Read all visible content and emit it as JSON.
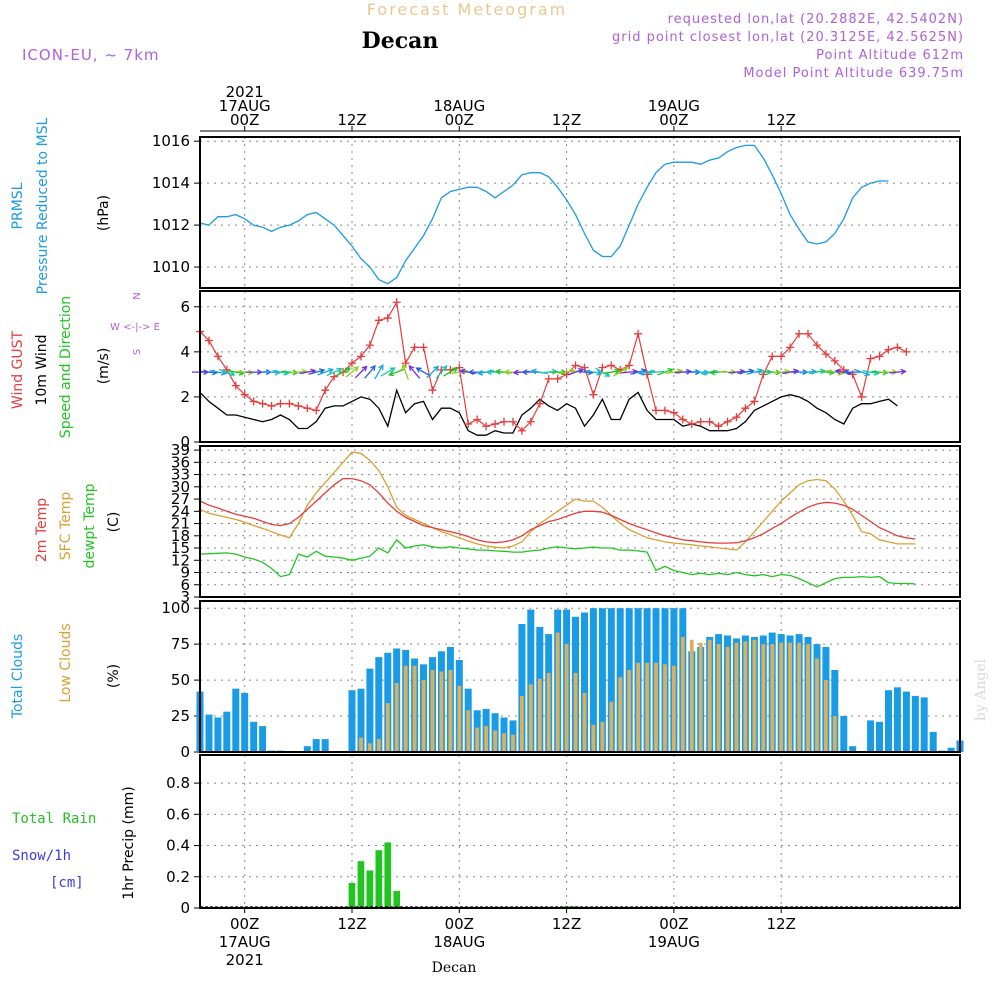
{
  "header": {
    "title": "Forecast Meteogram",
    "location": "Decan",
    "model": "ICON-EU, ~ 7km",
    "requested": "requested lon,lat (20.2882E, 42.5402N)",
    "gridpoint": "grid point closest lon,lat (20.3125E, 42.5625N)",
    "point_alt": "Point Altitude 612m",
    "model_alt": "Model Point Altitude 639.75m",
    "watermark": "by Angel",
    "footer_location": "Decan"
  },
  "time_axis": {
    "top_labels": [
      {
        "h": 0,
        "lines": [
          "2021",
          "17AUG",
          "00Z"
        ]
      },
      {
        "h": 12,
        "lines": [
          "12Z"
        ]
      },
      {
        "h": 24,
        "lines": [
          "18AUG",
          "00Z"
        ]
      },
      {
        "h": 36,
        "lines": [
          "12Z"
        ]
      },
      {
        "h": 48,
        "lines": [
          "19AUG",
          "00Z"
        ]
      },
      {
        "h": 60,
        "lines": [
          "12Z"
        ]
      }
    ],
    "bottom_labels": [
      {
        "h": 0,
        "lines": [
          "00Z",
          "17AUG",
          "2021"
        ]
      },
      {
        "h": 12,
        "lines": [
          "12Z"
        ]
      },
      {
        "h": 24,
        "lines": [
          "00Z",
          "18AUG"
        ]
      },
      {
        "h": 36,
        "lines": [
          "12Z"
        ]
      },
      {
        "h": 48,
        "lines": [
          "00Z",
          "19AUG"
        ]
      },
      {
        "h": 60,
        "lines": [
          "12Z"
        ]
      }
    ]
  },
  "colors": {
    "pressure": "#1a9be6",
    "gust": "#e83c3c",
    "wind": "#000000",
    "temp": "#e83c3c",
    "sfc": "#d9a030",
    "dewpt": "#22c422",
    "total_clouds": "#1a9be6",
    "low_clouds": "#d9b060",
    "rain": "#22c422",
    "snow": "#3a3ae8",
    "meta": "#b060d8",
    "title": "#e8c890"
  },
  "chart_data": [
    {
      "type": "line",
      "panel": "pressure",
      "title": "PRMSL Pressure Reduced to MSL",
      "ylabel_lines": [
        "PRMSL",
        "Pressure Reduced to MSL"
      ],
      "unit": "(hPa)",
      "ylim": [
        1009,
        1016.2
      ],
      "yticks": [
        1010,
        1012,
        1014,
        1016
      ],
      "x_start": -5,
      "x_step": 1,
      "values": [
        1012.1,
        1012.0,
        1012.4,
        1012.4,
        1012.5,
        1012.3,
        1012.0,
        1011.9,
        1011.7,
        1011.9,
        1012.0,
        1012.2,
        1012.5,
        1012.6,
        1012.3,
        1012.0,
        1011.5,
        1011.0,
        1010.4,
        1010.0,
        1009.4,
        1009.2,
        1009.5,
        1010.3,
        1010.9,
        1011.5,
        1012.3,
        1013.3,
        1013.6,
        1013.7,
        1013.8,
        1013.8,
        1013.6,
        1013.3,
        1013.6,
        1013.9,
        1014.4,
        1014.5,
        1014.5,
        1014.3,
        1013.8,
        1013.2,
        1012.5,
        1011.6,
        1010.8,
        1010.5,
        1010.5,
        1011.0,
        1012.0,
        1013.0,
        1013.8,
        1014.5,
        1014.9,
        1015.0,
        1015.0,
        1015.0,
        1014.9,
        1015.1,
        1015.2,
        1015.5,
        1015.7,
        1015.8,
        1015.8,
        1015.2,
        1014.4,
        1013.5,
        1012.5,
        1011.8,
        1011.2,
        1011.1,
        1011.2,
        1011.6,
        1012.3,
        1013.3,
        1013.8,
        1014.0,
        1014.1,
        1014.1
      ]
    },
    {
      "type": "line",
      "panel": "wind",
      "title": "Wind GUST / 10m Wind Speed and Direction",
      "ylabel_lines": [
        "Wind GUST",
        "10m Wind",
        "Speed and Direction"
      ],
      "unit": "(m/s)",
      "compass": [
        "N",
        "W <-|-> E",
        "S"
      ],
      "ylim": [
        0,
        6.7
      ],
      "yticks": [
        0,
        2,
        4,
        6
      ],
      "x_start": -5,
      "x_step": 1,
      "gust": [
        4.9,
        4.5,
        3.8,
        3.2,
        2.5,
        2.1,
        1.8,
        1.7,
        1.6,
        1.7,
        1.7,
        1.6,
        1.5,
        1.4,
        2.3,
        2.9,
        3.1,
        3.5,
        3.8,
        4.3,
        5.4,
        5.5,
        6.2,
        3.5,
        4.2,
        4.2,
        2.3,
        3.2,
        3.2,
        3.3,
        0.8,
        1.0,
        0.7,
        0.8,
        0.9,
        0.9,
        0.5,
        0.9,
        1.7,
        2.8,
        2.8,
        3.0,
        3.4,
        3.3,
        2.1,
        3.3,
        3.4,
        3.2,
        3.4,
        4.8,
        3.0,
        1.4,
        1.4,
        1.3,
        1.0,
        0.8,
        0.9,
        0.9,
        0.7,
        0.9,
        1.1,
        1.5,
        1.8,
        3.0,
        3.8,
        3.8,
        4.2,
        4.8,
        4.8,
        4.3,
        3.9,
        3.6,
        3.2,
        3.0,
        2.0,
        3.7,
        3.8,
        4.1,
        4.2,
        4.0
      ],
      "wind": [
        2.2,
        1.8,
        1.5,
        1.2,
        1.2,
        1.1,
        1.0,
        0.9,
        1.0,
        1.2,
        1.0,
        0.6,
        0.6,
        0.9,
        1.5,
        1.6,
        1.6,
        1.8,
        2.0,
        1.9,
        1.5,
        0.7,
        2.3,
        1.3,
        1.7,
        1.8,
        1.0,
        1.5,
        1.5,
        1.3,
        0.5,
        0.3,
        0.3,
        0.5,
        0.4,
        0.4,
        1.2,
        1.5,
        1.9,
        1.6,
        1.4,
        1.7,
        1.5,
        0.7,
        1.2,
        1.9,
        1.0,
        1.0,
        1.9,
        2.2,
        1.4,
        1.0,
        1.0,
        1.0,
        0.7,
        0.8,
        0.7,
        0.5,
        0.5,
        0.5,
        0.6,
        0.9,
        1.4,
        1.6,
        1.8,
        2.0,
        2.1,
        2.0,
        1.8,
        1.5,
        1.3,
        1.0,
        0.8,
        1.5,
        1.7,
        1.7,
        1.8,
        1.9,
        1.6
      ],
      "direction_deg": [
        90,
        95,
        100,
        110,
        100,
        95,
        90,
        90,
        95,
        100,
        95,
        85,
        80,
        75,
        70,
        65,
        60,
        50,
        45,
        40,
        30,
        60,
        250,
        340,
        320,
        300,
        45,
        40,
        60,
        80,
        280,
        270,
        260,
        270,
        275,
        270,
        265,
        270,
        280,
        85,
        90,
        80,
        70,
        95,
        100,
        120,
        80,
        60,
        85,
        75,
        260,
        265,
        70,
        80,
        85,
        90,
        95,
        260,
        265,
        90,
        85,
        80,
        75,
        90,
        95,
        85,
        80,
        90,
        85,
        80,
        95,
        100,
        280,
        270,
        110,
        100,
        95,
        90,
        85
      ]
    },
    {
      "type": "line",
      "panel": "temperature",
      "title": "2m Temp / SFC Temp / dewpt Temp",
      "ylabel_lines": [
        "2m Temp",
        "SFC Temp",
        "dewpt Temp"
      ],
      "unit": "(C)",
      "ylim": [
        3,
        40
      ],
      "yticks": [
        3,
        6,
        9,
        12,
        15,
        18,
        21,
        24,
        27,
        30,
        33,
        36,
        39
      ],
      "x_start": -5,
      "x_step": 1,
      "temp_2m": [
        26.5,
        25.5,
        24.8,
        24.0,
        23.3,
        22.8,
        22.3,
        21.5,
        20.8,
        20.5,
        21.0,
        22.5,
        24.5,
        26.5,
        28.5,
        30.5,
        32.0,
        32.0,
        31.5,
        30.5,
        28.5,
        26.0,
        24.0,
        22.5,
        21.5,
        20.5,
        20.0,
        19.5,
        19.0,
        18.5,
        17.8,
        17.0,
        16.5,
        16.3,
        16.5,
        17.0,
        18.0,
        19.5,
        20.5,
        21.5,
        22.0,
        22.8,
        23.5,
        24.0,
        24.0,
        23.8,
        23.0,
        22.0,
        21.0,
        20.2,
        19.5,
        18.7,
        18.0,
        17.5,
        17.0,
        16.8,
        16.5,
        16.3,
        16.2,
        16.2,
        16.3,
        16.8,
        17.5,
        18.5,
        19.8,
        21.0,
        22.5,
        23.8,
        25.0,
        25.8,
        26.2,
        26.0,
        25.5,
        24.5,
        23.0,
        21.5,
        20.0,
        19.0,
        18.0,
        17.5,
        17.2
      ],
      "sfc_temp": [
        24.5,
        23.5,
        23.0,
        22.5,
        22.0,
        21.3,
        20.5,
        19.8,
        19.0,
        18.2,
        17.5,
        21.0,
        25.5,
        28.5,
        31.0,
        33.5,
        36.0,
        38.5,
        38.2,
        36.5,
        34.0,
        30.0,
        25.0,
        23.0,
        22.0,
        21.0,
        20.0,
        19.0,
        18.3,
        17.5,
        16.7,
        16.0,
        15.5,
        15.2,
        15.0,
        15.5,
        16.5,
        19.0,
        21.0,
        22.5,
        24.0,
        25.5,
        27.0,
        26.5,
        26.5,
        25.0,
        23.0,
        21.0,
        19.5,
        18.5,
        17.5,
        17.0,
        16.5,
        16.2,
        16.0,
        15.8,
        15.5,
        15.3,
        15.0,
        14.8,
        14.5,
        16.5,
        19.0,
        21.5,
        24.0,
        26.5,
        28.5,
        30.5,
        31.5,
        31.8,
        31.5,
        29.5,
        26.5,
        23.0,
        19.0,
        18.5,
        17.0,
        16.5,
        16.0,
        16.0,
        16.0
      ],
      "dewpt": [
        13.5,
        13.6,
        13.7,
        13.8,
        13.5,
        12.8,
        12.3,
        11.5,
        10.0,
        8.0,
        8.5,
        13.5,
        12.8,
        14.2,
        13.0,
        12.8,
        12.5,
        12.0,
        12.5,
        13.0,
        15.0,
        13.8,
        17.0,
        15.0,
        15.5,
        15.8,
        15.3,
        15.0,
        15.3,
        15.0,
        14.8,
        14.5,
        14.5,
        14.3,
        14.2,
        14.0,
        14.0,
        14.3,
        14.5,
        15.0,
        15.3,
        15.0,
        14.8,
        15.0,
        15.2,
        15.0,
        15.0,
        14.5,
        14.5,
        14.3,
        14.0,
        9.5,
        10.5,
        9.5,
        9.0,
        8.5,
        8.8,
        8.5,
        8.8,
        8.5,
        9.0,
        8.5,
        8.2,
        8.5,
        8.0,
        8.5,
        8.3,
        7.5,
        6.5,
        5.5,
        6.5,
        7.5,
        7.8,
        7.8,
        8.0,
        7.8,
        8.0,
        6.5,
        6.3,
        6.3,
        6.2
      ]
    },
    {
      "type": "bar",
      "panel": "clouds",
      "title": "Total Clouds / Low Clouds",
      "ylabel_lines": [
        "Total Clouds",
        "Low Clouds"
      ],
      "unit": "(%)",
      "ylim": [
        0,
        105
      ],
      "yticks": [
        0,
        25,
        50,
        75,
        100
      ],
      "x_start": -5,
      "x_step": 1,
      "total": [
        42,
        26,
        24,
        28,
        44,
        41,
        21,
        18,
        1,
        1,
        0,
        0,
        4,
        9,
        9,
        0,
        0,
        43,
        44,
        58,
        66,
        69,
        72,
        71,
        65,
        61,
        66,
        70,
        73,
        64,
        44,
        29,
        30,
        27,
        24,
        22,
        89,
        99,
        87,
        82,
        99,
        99,
        94,
        97,
        100,
        100,
        100,
        100,
        100,
        100,
        100,
        100,
        100,
        100,
        100,
        70,
        73,
        80,
        82,
        81,
        79,
        81,
        80,
        81,
        83,
        82,
        81,
        82,
        80,
        75,
        73,
        57,
        25,
        4,
        0,
        22,
        21,
        43,
        45,
        42,
        39,
        38,
        14,
        1,
        3,
        8
      ],
      "low": [
        0,
        0,
        0,
        0,
        0,
        0,
        0,
        0,
        0,
        0,
        0,
        0,
        0,
        0,
        0,
        0,
        0,
        0,
        10,
        6,
        9,
        34,
        48,
        60,
        60,
        50,
        57,
        56,
        57,
        46,
        29,
        17,
        18,
        15,
        13,
        12,
        39,
        47,
        51,
        55,
        83,
        75,
        55,
        41,
        19,
        21,
        35,
        52,
        57,
        62,
        62,
        62,
        61,
        60,
        80,
        78,
        76,
        78,
        75,
        73,
        76,
        77,
        78,
        75,
        75,
        76,
        76,
        76,
        75,
        65,
        50,
        25,
        0,
        0,
        0,
        0,
        0,
        0,
        0,
        0,
        0,
        0,
        0,
        0,
        0,
        0
      ]
    },
    {
      "type": "bar",
      "panel": "precip",
      "title": "1hr Precip",
      "ylabel_lines": [
        "Total Rain",
        "Snow/1h",
        "[cm]"
      ],
      "unit": "1hr Precip (mm)",
      "ylim": [
        0,
        0.98
      ],
      "yticks": [
        0,
        0.2,
        0.4,
        0.6,
        0.8
      ],
      "ytick_labels": [
        "0",
        "0.2",
        "0.4",
        "0.6",
        "0.8"
      ],
      "x_start": 11,
      "x_step": 1,
      "rain": [
        0,
        0.16,
        0.3,
        0.24,
        0.37,
        0.42,
        0.11,
        0,
        0,
        0,
        0,
        0,
        0,
        0,
        0,
        0,
        0,
        0,
        0,
        0,
        0,
        0,
        0,
        0,
        0,
        0.01,
        0.01
      ],
      "snow": []
    }
  ]
}
